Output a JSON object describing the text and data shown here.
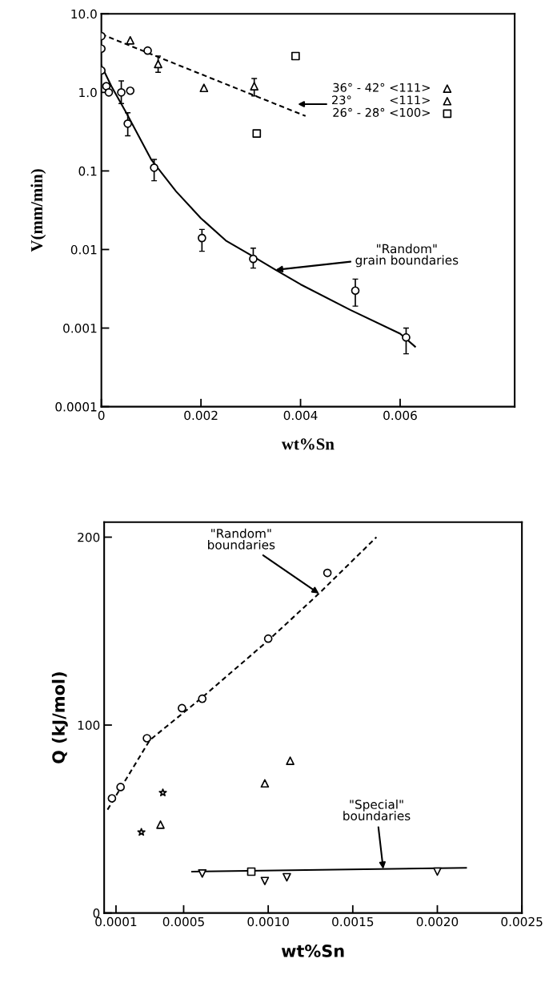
{
  "chart_data": [
    {
      "type": "scatter",
      "xlabel": "wt%Sn",
      "ylabel": "V(mm/min)",
      "log": "y",
      "grid": false,
      "legend": "top right",
      "xlim": [
        0,
        0.0083
      ],
      "xticks": [
        0,
        0.002,
        0.004,
        0.006
      ],
      "ylim": [
        0.0001,
        10
      ],
      "yticks": [
        {
          "value": 10,
          "label": "10.0"
        },
        {
          "value": 1,
          "label": "1.0"
        },
        0.1,
        0.01,
        0.001,
        0.0001
      ],
      "series": [
        {
          "marker": "circle",
          "color": "#000000",
          "x": [
            0,
            0,
            0,
            0.0001,
            0.00015,
            0.0004,
            0.00058,
            0.00053,
            0.00093,
            0.00106,
            0.00202,
            0.00305,
            0.0051,
            0.00612
          ],
          "values": [
            5.2,
            3.6,
            1.9,
            1.2,
            1.0,
            1.0,
            1.05,
            0.4,
            3.4,
            0.11,
            0.014,
            0.0076,
            0.003,
            0.00076
          ],
          "errors": [
            null,
            null,
            null,
            null,
            null,
            [
              0.72,
              1.4
            ],
            null,
            [
              0.28,
              0.55
            ],
            null,
            [
              0.075,
              0.14
            ],
            [
              0.0095,
              0.018
            ],
            [
              0.0058,
              0.0104
            ],
            [
              0.0019,
              0.0042
            ],
            [
              0.00047,
              0.001
            ]
          ]
        },
        {
          "name": "36° - 42° <111>",
          "marker": "triangle",
          "color": "#000000",
          "x": [
            0.00058,
            0.00114,
            0.00307
          ],
          "values": [
            4.6,
            2.3,
            1.2
          ],
          "errors": [
            null,
            [
              1.8,
              2.9
            ],
            [
              0.9,
              1.5
            ]
          ]
        },
        {
          "name": "23°          <111>",
          "marker": "triangle",
          "color": "#000000",
          "x": [
            0.00206
          ],
          "values": [
            1.14
          ]
        },
        {
          "name": "26° - 28° <100>",
          "marker": "square",
          "color": "#000000",
          "x": [
            0.0039,
            0.00312
          ],
          "values": [
            2.9,
            0.3
          ]
        },
        {
          "type": "line",
          "line_style": "solid",
          "color": "#000000",
          "x": [
            0,
            0.0002,
            0.0005,
            0.001,
            0.0015,
            0.002,
            0.0025,
            0.003,
            0.0035,
            0.004,
            0.005,
            0.006,
            0.0063
          ],
          "values": [
            2.2,
            1.2,
            0.55,
            0.14,
            0.055,
            0.025,
            0.013,
            0.0085,
            0.0055,
            0.0036,
            0.0017,
            0.00085,
            0.00058
          ]
        },
        {
          "type": "line",
          "line_style": "dashed",
          "color": "#000000",
          "x": [
            0,
            0.0041
          ],
          "values": [
            5.5,
            0.5
          ]
        }
      ],
      "annotations": [
        {
          "text": "\"Random\"\ngrain boundaries",
          "x": 0.0035,
          "y": 0.0055
        }
      ]
    },
    {
      "type": "scatter",
      "xlabel": "wt%Sn",
      "ylabel": "Q (kJ/mol)",
      "grid": false,
      "xlim": [
        3e-05,
        0.0025
      ],
      "xticks": [
        0.0001,
        0.0005,
        {
          "value": 0.001,
          "label": "0.0010"
        },
        0.0015,
        {
          "value": 0.002,
          "label": "0.0020"
        },
        0.0025
      ],
      "ylim": [
        0,
        208
      ],
      "yticks": [
        0,
        100,
        200
      ],
      "series": [
        {
          "marker": "circle",
          "color": "#000000",
          "x": [
            7.6e-05,
            0.000127,
            0.000283,
            0.00049,
            0.00061,
            0.001,
            0.00135
          ],
          "values": [
            61,
            67,
            93,
            109,
            114,
            146,
            181
          ]
        },
        {
          "marker": "star",
          "color": "#000000",
          "x": [
            0.00025,
            0.000377
          ],
          "values": [
            43,
            64
          ]
        },
        {
          "marker": "triangle",
          "color": "#000000",
          "x": [
            0.000363,
            0.00098,
            0.00113
          ],
          "values": [
            47,
            69,
            81
          ]
        },
        {
          "marker": "triangle_down",
          "color": "#000000",
          "x": [
            0.00061,
            0.00098,
            0.00111,
            0.002
          ],
          "values": [
            21,
            17,
            19,
            22
          ]
        },
        {
          "marker": "square",
          "color": "#000000",
          "x": [
            0.0009
          ],
          "values": [
            22
          ]
        },
        {
          "type": "line",
          "line_style": "dashed",
          "color": "#000000",
          "x": [
            5e-05,
            0.0003,
            0.0006,
            0.001,
            0.0013,
            0.00164
          ],
          "values": [
            55,
            92,
            114,
            145,
            170,
            200
          ]
        },
        {
          "type": "line",
          "line_style": "solid",
          "color": "#000000",
          "x": [
            0.00055,
            0.00217
          ],
          "values": [
            22,
            24
          ]
        }
      ],
      "annotations": [
        {
          "text": "\"Random\"\nboundaries",
          "x": 0.0013,
          "y": 170
        },
        {
          "text": "\"Special\"\nboundaries",
          "x": 0.00168,
          "y": 23.4
        }
      ]
    }
  ]
}
